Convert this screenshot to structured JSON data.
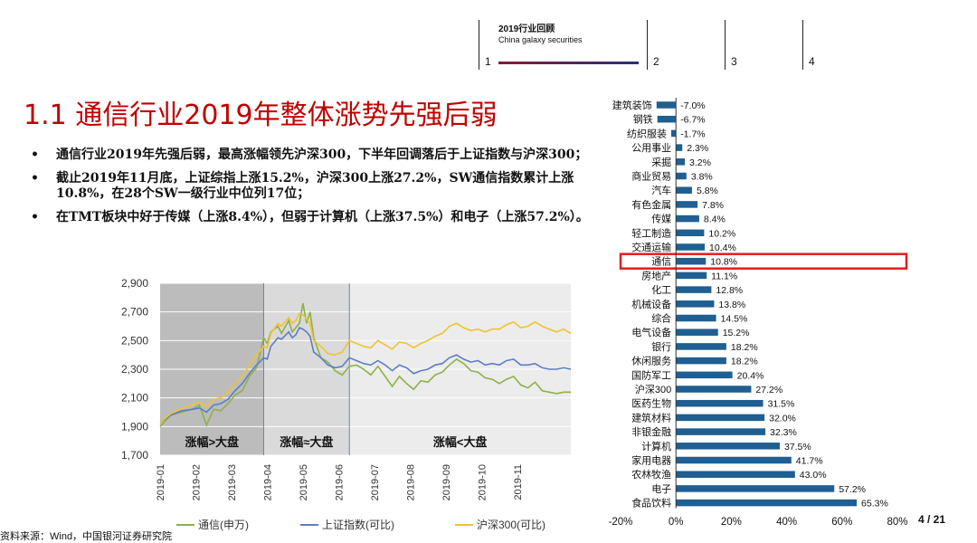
{
  "nav": {
    "title": "2019行业回顾",
    "subtitle": "China galaxy securities",
    "sections": [
      "1",
      "2",
      "3",
      "4"
    ]
  },
  "slide_title": "1.1 通信行业2019年整体涨势先强后弱",
  "bullets": [
    "通信行业2019年先强后弱，最高涨幅领先沪深300，下半年回调落后于上证指数与沪深300；",
    "截止2019年11月底，上证综指上涨15.2%，沪深300上涨27.2%，SW通信指数累计上涨10.8%，在28个SW一级行业中位列17位；",
    "在TMT板块中好于传媒（上涨8.4%），但弱于计算机（上涨37.5%）和电子（上涨57.2%）。"
  ],
  "bullet_marker": "•",
  "source": "资料来源：Wind，中国银河证券研究院",
  "page_number": "4 / 21",
  "colors": {
    "title_red": "#c00000",
    "bar_blue": "#1f5f91",
    "highlight_red": "#e02020",
    "line_green": "#8fb04a",
    "line_blue": "#5b7ec4",
    "line_yellow": "#f2c230",
    "nav_accent": "#2a2f7a"
  },
  "chart_data": [
    {
      "type": "line",
      "title": "",
      "ylim": [
        1700,
        2900
      ],
      "yticks": [
        "2,900",
        "2,700",
        "2,500",
        "2,300",
        "2,100",
        "1,900",
        "1,700"
      ],
      "xticks": [
        "2019-01",
        "2019-02",
        "2019-03",
        "2019-04",
        "2019-05",
        "2019-06",
        "2019-07",
        "2019-08",
        "2019-09",
        "2019-10",
        "2019-11"
      ],
      "phases": [
        {
          "label": "涨幅>大盘",
          "start": 0.0,
          "end": 2.9
        },
        {
          "label": "涨幅≈大盘",
          "start": 2.9,
          "end": 5.3
        },
        {
          "label": "涨幅<大盘",
          "start": 5.3,
          "end": 11.5
        }
      ],
      "series": [
        {
          "name": "通信(申万)",
          "color": "#8fb04a",
          "points": [
            [
              0,
              1900
            ],
            [
              0.3,
              1980
            ],
            [
              0.6,
              2000
            ],
            [
              0.9,
              2020
            ],
            [
              1.1,
              2050
            ],
            [
              1.3,
              1910
            ],
            [
              1.5,
              2020
            ],
            [
              1.7,
              2010
            ],
            [
              1.9,
              2060
            ],
            [
              2.1,
              2120
            ],
            [
              2.3,
              2150
            ],
            [
              2.5,
              2250
            ],
            [
              2.7,
              2310
            ],
            [
              2.9,
              2520
            ],
            [
              3.0,
              2480
            ],
            [
              3.1,
              2560
            ],
            [
              3.3,
              2600
            ],
            [
              3.4,
              2550
            ],
            [
              3.6,
              2640
            ],
            [
              3.7,
              2560
            ],
            [
              3.8,
              2590
            ],
            [
              3.9,
              2620
            ],
            [
              4.0,
              2760
            ],
            [
              4.1,
              2620
            ],
            [
              4.2,
              2700
            ],
            [
              4.3,
              2520
            ],
            [
              4.5,
              2380
            ],
            [
              4.7,
              2350
            ],
            [
              4.9,
              2290
            ],
            [
              5.1,
              2260
            ],
            [
              5.3,
              2320
            ],
            [
              5.5,
              2330
            ],
            [
              5.7,
              2300
            ],
            [
              5.9,
              2260
            ],
            [
              6.1,
              2320
            ],
            [
              6.3,
              2250
            ],
            [
              6.5,
              2180
            ],
            [
              6.7,
              2250
            ],
            [
              6.9,
              2200
            ],
            [
              7.1,
              2160
            ],
            [
              7.3,
              2220
            ],
            [
              7.5,
              2210
            ],
            [
              7.7,
              2260
            ],
            [
              7.9,
              2280
            ],
            [
              8.1,
              2330
            ],
            [
              8.3,
              2370
            ],
            [
              8.5,
              2340
            ],
            [
              8.7,
              2290
            ],
            [
              8.9,
              2280
            ],
            [
              9.1,
              2240
            ],
            [
              9.3,
              2230
            ],
            [
              9.5,
              2200
            ],
            [
              9.7,
              2230
            ],
            [
              9.9,
              2250
            ],
            [
              10.1,
              2190
            ],
            [
              10.3,
              2170
            ],
            [
              10.5,
              2210
            ],
            [
              10.7,
              2150
            ],
            [
              10.9,
              2140
            ],
            [
              11.1,
              2130
            ],
            [
              11.3,
              2140
            ],
            [
              11.5,
              2140
            ]
          ]
        },
        {
          "name": "上证指数(可比)",
          "color": "#5b7ec4",
          "points": [
            [
              0,
              1930
            ],
            [
              0.3,
              1980
            ],
            [
              0.6,
              2010
            ],
            [
              0.9,
              2020
            ],
            [
              1.1,
              2030
            ],
            [
              1.3,
              2000
            ],
            [
              1.5,
              2050
            ],
            [
              1.7,
              2060
            ],
            [
              1.9,
              2090
            ],
            [
              2.1,
              2150
            ],
            [
              2.3,
              2200
            ],
            [
              2.5,
              2270
            ],
            [
              2.7,
              2330
            ],
            [
              2.9,
              2380
            ],
            [
              3.0,
              2370
            ],
            [
              3.1,
              2460
            ],
            [
              3.3,
              2520
            ],
            [
              3.4,
              2510
            ],
            [
              3.6,
              2560
            ],
            [
              3.7,
              2520
            ],
            [
              3.8,
              2540
            ],
            [
              3.9,
              2590
            ],
            [
              4.0,
              2580
            ],
            [
              4.1,
              2560
            ],
            [
              4.2,
              2530
            ],
            [
              4.3,
              2420
            ],
            [
              4.5,
              2380
            ],
            [
              4.7,
              2330
            ],
            [
              4.9,
              2310
            ],
            [
              5.1,
              2320
            ],
            [
              5.3,
              2380
            ],
            [
              5.5,
              2360
            ],
            [
              5.7,
              2340
            ],
            [
              5.9,
              2330
            ],
            [
              6.1,
              2360
            ],
            [
              6.3,
              2330
            ],
            [
              6.5,
              2290
            ],
            [
              6.7,
              2330
            ],
            [
              6.9,
              2310
            ],
            [
              7.1,
              2270
            ],
            [
              7.3,
              2290
            ],
            [
              7.5,
              2300
            ],
            [
              7.7,
              2330
            ],
            [
              7.9,
              2340
            ],
            [
              8.1,
              2380
            ],
            [
              8.3,
              2400
            ],
            [
              8.5,
              2370
            ],
            [
              8.7,
              2350
            ],
            [
              8.9,
              2360
            ],
            [
              9.1,
              2330
            ],
            [
              9.3,
              2340
            ],
            [
              9.5,
              2330
            ],
            [
              9.7,
              2360
            ],
            [
              9.9,
              2370
            ],
            [
              10.1,
              2330
            ],
            [
              10.3,
              2330
            ],
            [
              10.5,
              2340
            ],
            [
              10.7,
              2310
            ],
            [
              10.9,
              2300
            ],
            [
              11.1,
              2300
            ],
            [
              11.3,
              2310
            ],
            [
              11.5,
              2300
            ]
          ]
        },
        {
          "name": "沪深300(可比)",
          "color": "#f2c230",
          "points": [
            [
              0,
              1930
            ],
            [
              0.3,
              1990
            ],
            [
              0.6,
              2030
            ],
            [
              0.9,
              2050
            ],
            [
              1.1,
              2070
            ],
            [
              1.3,
              2040
            ],
            [
              1.5,
              2090
            ],
            [
              1.7,
              2100
            ],
            [
              1.9,
              2140
            ],
            [
              2.1,
              2200
            ],
            [
              2.3,
              2250
            ],
            [
              2.5,
              2330
            ],
            [
              2.7,
              2400
            ],
            [
              2.9,
              2460
            ],
            [
              3.0,
              2450
            ],
            [
              3.1,
              2550
            ],
            [
              3.3,
              2620
            ],
            [
              3.4,
              2600
            ],
            [
              3.6,
              2660
            ],
            [
              3.7,
              2620
            ],
            [
              3.8,
              2640
            ],
            [
              3.9,
              2690
            ],
            [
              4.0,
              2680
            ],
            [
              4.1,
              2650
            ],
            [
              4.2,
              2620
            ],
            [
              4.3,
              2500
            ],
            [
              4.5,
              2460
            ],
            [
              4.7,
              2410
            ],
            [
              4.9,
              2400
            ],
            [
              5.1,
              2420
            ],
            [
              5.3,
              2500
            ],
            [
              5.5,
              2480
            ],
            [
              5.7,
              2460
            ],
            [
              5.9,
              2450
            ],
            [
              6.1,
              2500
            ],
            [
              6.3,
              2470
            ],
            [
              6.5,
              2440
            ],
            [
              6.7,
              2490
            ],
            [
              6.9,
              2480
            ],
            [
              7.1,
              2450
            ],
            [
              7.3,
              2480
            ],
            [
              7.5,
              2500
            ],
            [
              7.7,
              2530
            ],
            [
              7.9,
              2550
            ],
            [
              8.1,
              2600
            ],
            [
              8.3,
              2620
            ],
            [
              8.5,
              2590
            ],
            [
              8.7,
              2570
            ],
            [
              8.9,
              2580
            ],
            [
              9.1,
              2560
            ],
            [
              9.3,
              2580
            ],
            [
              9.5,
              2580
            ],
            [
              9.7,
              2610
            ],
            [
              9.9,
              2630
            ],
            [
              10.1,
              2590
            ],
            [
              10.3,
              2600
            ],
            [
              10.5,
              2630
            ],
            [
              10.7,
              2600
            ],
            [
              10.9,
              2580
            ],
            [
              11.1,
              2560
            ],
            [
              11.3,
              2580
            ],
            [
              11.5,
              2550
            ]
          ]
        }
      ]
    },
    {
      "type": "bar",
      "orientation": "horizontal",
      "xlim": [
        -20,
        80
      ],
      "xticks": [
        "-20%",
        "0%",
        "20%",
        "40%",
        "60%",
        "80%"
      ],
      "highlight": "通信",
      "categories": [
        "建筑装饰",
        "钢铁",
        "纺织服装",
        "公用事业",
        "采掘",
        "商业贸易",
        "汽车",
        "有色金属",
        "传媒",
        "轻工制造",
        "交通运输",
        "通信",
        "房地产",
        "化工",
        "机械设备",
        "综合",
        "电气设备",
        "银行",
        "休闲服务",
        "国防军工",
        "沪深300",
        "医药生物",
        "建筑材料",
        "非银金融",
        "计算机",
        "家用电器",
        "农林牧渔",
        "电子",
        "食品饮料"
      ],
      "values": [
        -7.0,
        -6.7,
        -1.7,
        2.3,
        3.2,
        3.8,
        5.8,
        7.8,
        8.4,
        10.2,
        10.4,
        10.8,
        11.1,
        12.8,
        13.8,
        14.5,
        15.2,
        18.2,
        18.2,
        20.4,
        27.2,
        31.5,
        32.0,
        32.3,
        37.5,
        41.7,
        43.0,
        57.2,
        65.3
      ],
      "value_labels": [
        "-7.0%",
        "-6.7%",
        "-1.7%",
        "2.3%",
        "3.2%",
        "3.8%",
        "5.8%",
        "7.8%",
        "8.4%",
        "10.2%",
        "10.4%",
        "10.8%",
        "11.1%",
        "12.8%",
        "13.8%",
        "14.5%",
        "15.2%",
        "18.2%",
        "18.2%",
        "20.4%",
        "27.2%",
        "31.5%",
        "32.0%",
        "32.3%",
        "37.5%",
        "41.7%",
        "43.0%",
        "57.2%",
        "65.3%"
      ]
    }
  ]
}
